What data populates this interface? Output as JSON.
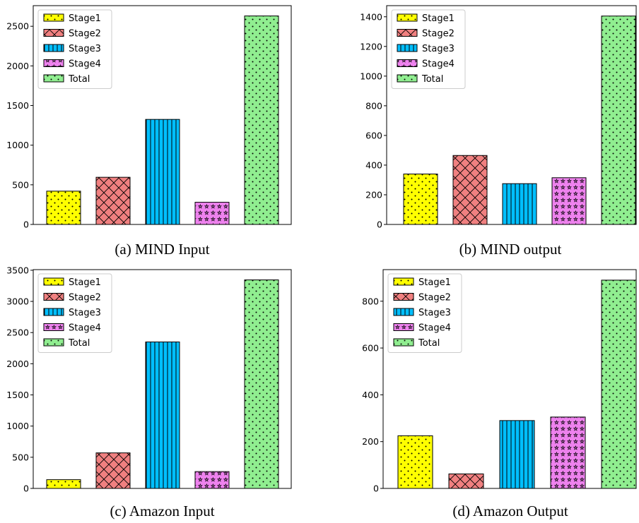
{
  "chart_data": [
    {
      "type": "bar",
      "caption": "(a) MIND Input",
      "categories": [
        "Stage1",
        "Stage2",
        "Stage3",
        "Stage4",
        "Total"
      ],
      "values": [
        420,
        595,
        1325,
        280,
        2630
      ],
      "yticks": [
        0,
        500,
        1000,
        1500,
        2000,
        2500
      ],
      "ylim": [
        0,
        2760
      ],
      "legend": [
        "Stage1",
        "Stage2",
        "Stage3",
        "Stage4",
        "Total"
      ],
      "legend_position": "top-left",
      "grid": false
    },
    {
      "type": "bar",
      "caption": "(b) MIND output",
      "categories": [
        "Stage1",
        "Stage2",
        "Stage3",
        "Stage4",
        "Total"
      ],
      "values": [
        340,
        465,
        275,
        315,
        1405
      ],
      "yticks": [
        0,
        200,
        400,
        600,
        800,
        1000,
        1200,
        1400
      ],
      "ylim": [
        0,
        1475
      ],
      "legend": [
        "Stage1",
        "Stage2",
        "Stage3",
        "Stage4",
        "Total"
      ],
      "legend_position": "top-left",
      "grid": false
    },
    {
      "type": "bar",
      "caption": "(c) Amazon Input",
      "categories": [
        "Stage1",
        "Stage2",
        "Stage3",
        "Stage4",
        "Total"
      ],
      "values": [
        140,
        570,
        2350,
        270,
        3345
      ],
      "yticks": [
        0,
        500,
        1000,
        1500,
        2000,
        2500,
        3000,
        3500
      ],
      "ylim": [
        0,
        3510
      ],
      "legend": [
        "Stage1",
        "Stage2",
        "Stage3",
        "Stage4",
        "Total"
      ],
      "legend_position": "top-left",
      "grid": false
    },
    {
      "type": "bar",
      "caption": "(d) Amazon Output",
      "categories": [
        "Stage1",
        "Stage2",
        "Stage3",
        "Stage4",
        "Total"
      ],
      "values": [
        225,
        62,
        290,
        305,
        890
      ],
      "yticks": [
        0,
        200,
        400,
        600,
        800
      ],
      "ylim": [
        0,
        935
      ],
      "legend": [
        "Stage1",
        "Stage2",
        "Stage3",
        "Stage4",
        "Total"
      ],
      "legend_position": "top-left",
      "grid": false
    }
  ],
  "series_colors": {
    "Stage1": "#ffff00",
    "Stage2": "#f08080",
    "Stage3": "#00bfff",
    "Stage4": "#ee82ee",
    "Total": "#90ee90"
  },
  "series_patterns": {
    "Stage1": "dots",
    "Stage2": "crosshatch",
    "Stage3": "vertical-lines",
    "Stage4": "stars",
    "Total": "dots"
  }
}
